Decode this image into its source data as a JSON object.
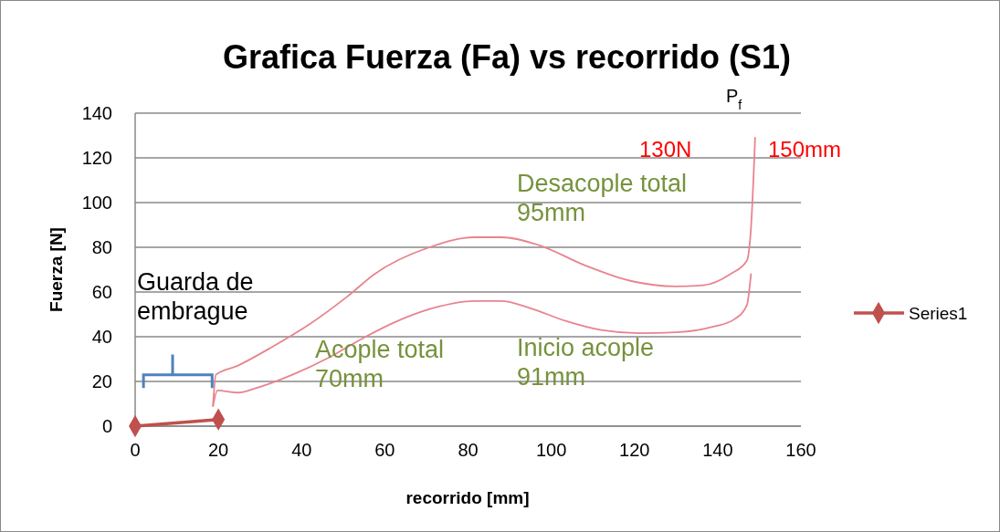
{
  "chart_data": {
    "type": "line",
    "title": "Grafica Fuerza (Fa) vs recorrido (S1)",
    "xlabel": "recorrido [mm]",
    "ylabel": "Fuerza [N]",
    "xlim": [
      0,
      160
    ],
    "xticks": [
      0,
      20,
      40,
      60,
      80,
      100,
      120,
      140,
      160
    ],
    "ylim": [
      0,
      140
    ],
    "yticks": [
      0,
      20,
      40,
      60,
      80,
      100,
      120,
      140
    ],
    "grid": "y",
    "legend": "right",
    "series": [
      {
        "name": "Series1",
        "color": "#c0504d",
        "marker": "diamond",
        "x": [
          0,
          20
        ],
        "values": [
          0,
          3
        ]
      },
      {
        "color": "#e8848f",
        "marker": "none",
        "x": [
          18.7,
          19.4,
          24.6,
          33,
          42,
          51,
          57.5,
          70.7,
          81.6,
          88,
          97,
          108,
          119,
          130,
          136.5,
          143,
          147,
          148,
          149
        ],
        "values": [
          9,
          23,
          27,
          35.5,
          45.7,
          58,
          68,
          80,
          84.5,
          84.5,
          81,
          72,
          65,
          62.5,
          63,
          68,
          74,
          88.6,
          129
        ]
      },
      {
        "color": "#e8848f",
        "marker": "none",
        "x": [
          18.7,
          19.8,
          24.6,
          29,
          37.8,
          46.5,
          55,
          64,
          73,
          81.6,
          88,
          95,
          103.6,
          112,
          121,
          130,
          139,
          144,
          147,
          148
        ],
        "values": [
          9,
          16,
          15,
          17,
          23,
          30.6,
          39.6,
          47.8,
          53.5,
          56,
          56,
          52.7,
          47,
          43,
          41.6,
          42,
          44.5,
          47.8,
          54,
          68
        ]
      }
    ],
    "annotations": [
      "Guarda de embrague",
      "Acople total 70mm",
      "Desacople total 95mm",
      "Inicio acople 91mm",
      "130N",
      "150mm",
      "P$_{f}$"
    ]
  }
}
